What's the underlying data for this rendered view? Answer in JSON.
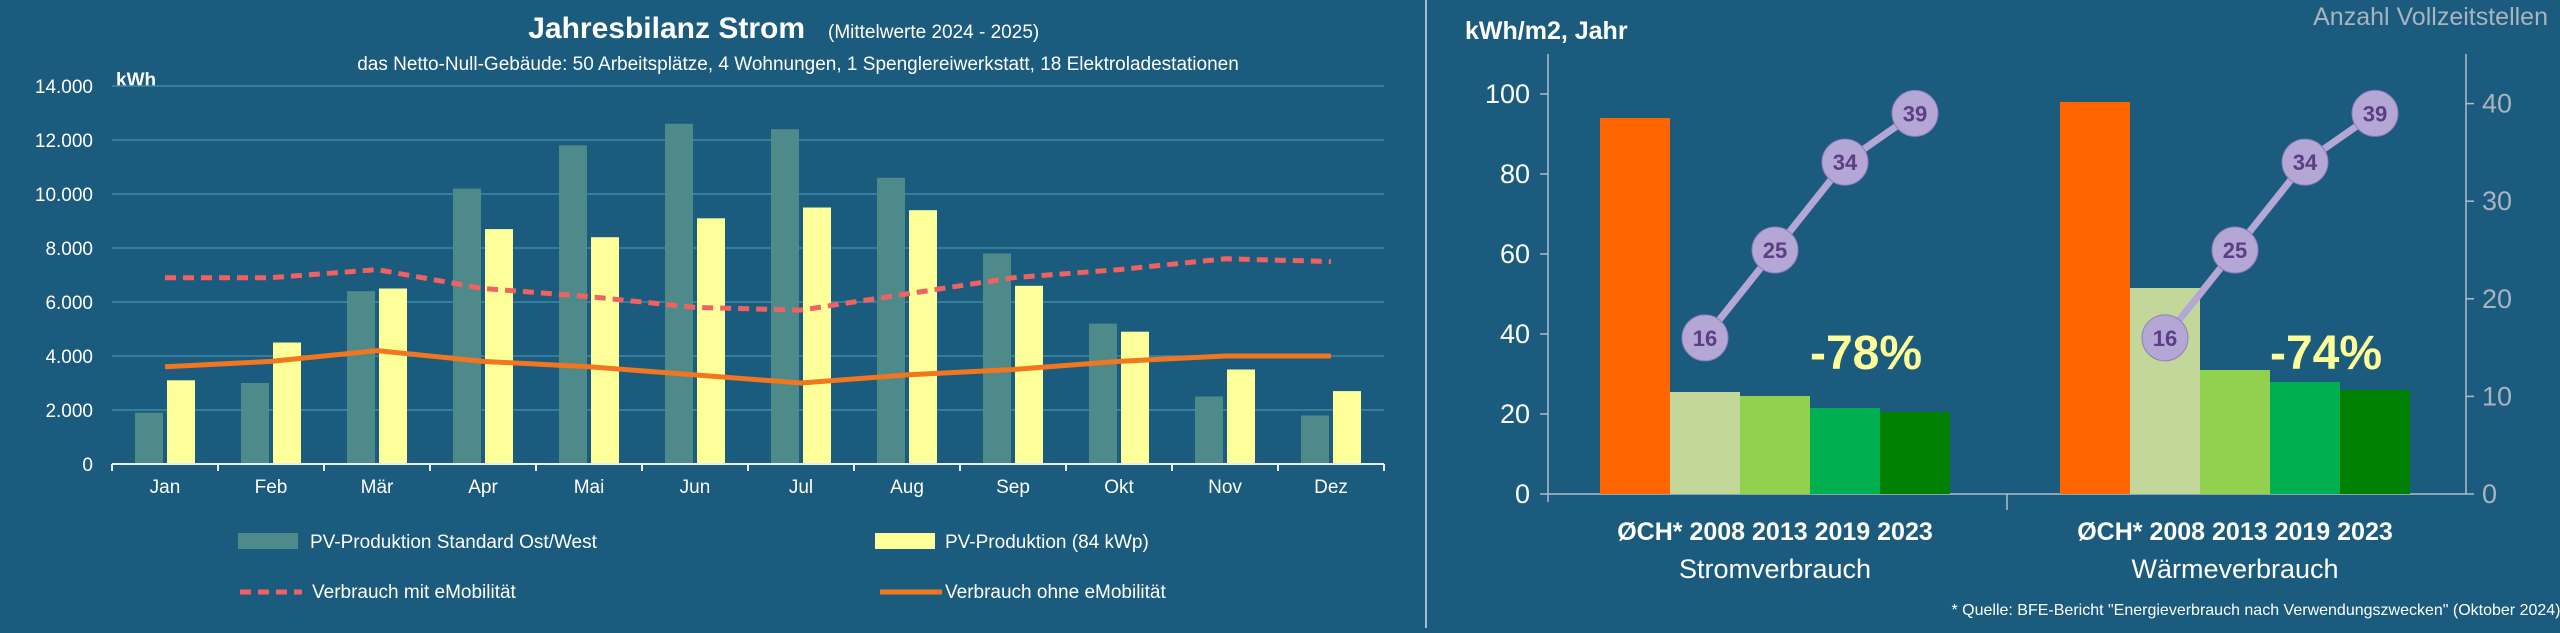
{
  "left_chart": {
    "title": "Jahresbilanz Strom",
    "title_note": "(Mittelwerte 2024 - 2025)",
    "subtitle": "das Netto-Null-Gebäude: 50 Arbeitsplätze, 4 Wohnungen, 1 Spenglereiwerkstatt, 18 Elektroladestationen",
    "unit_label": "kWh",
    "y_tick_labels": [
      "0",
      "2.000",
      "4.000",
      "6.000",
      "8.000",
      "10.000",
      "12.000",
      "14.000"
    ],
    "legend": {
      "pv_standard": "PV-Produktion Standard Ost/West",
      "pv_84": "PV-Produktion (84 kWp)",
      "consumption_emob": "Verbrauch mit eMobilität",
      "consumption_no_emob": "Verbrauch ohne eMobilität"
    }
  },
  "right_chart": {
    "y_left_label": "kWh/m2, Jahr",
    "y_right_label": "Anzahl Vollzeitstellen",
    "y_left_ticks": [
      "0",
      "20",
      "40",
      "60",
      "80",
      "100"
    ],
    "y_right_ticks": [
      "0",
      "10",
      "20",
      "30",
      "40"
    ],
    "groups": [
      {
        "bars_label": "ØCH* 2008 2013 2019 2023",
        "name": "Stromverbrauch",
        "reduction": "-78%"
      },
      {
        "bars_label": "ØCH* 2008 2013 2019 2023",
        "name": "Wärmeverbrauch",
        "reduction": "-74%"
      }
    ],
    "footnote": "* Quelle: BFE-Bericht \"Energieverbrauch nach Verwendungszwecken\" (Oktober 2024)"
  },
  "colors": {
    "background": "#1b5b7d",
    "pv_standard": "#4f8a8a",
    "pv_84": "#ffff99",
    "consumption_emob": "#f06262",
    "consumption_no_emob": "#f0761f",
    "bar_ch": "#ff6600",
    "bar_2008": "#c4d79b",
    "bar_2013": "#92d050",
    "bar_2019": "#00b050",
    "bar_2023": "#008000",
    "bubble": "#b4a7d6",
    "bubble_text": "#5b3f84",
    "reduction_text": "#ffff99"
  },
  "chart_data": [
    {
      "type": "bar",
      "title": "Jahresbilanz Strom",
      "ylabel": "kWh",
      "ylim": [
        0,
        14000
      ],
      "categories": [
        "Jan",
        "Feb",
        "Mär",
        "Apr",
        "Mai",
        "Jun",
        "Jul",
        "Aug",
        "Sep",
        "Okt",
        "Nov",
        "Dez"
      ],
      "series": [
        {
          "name": "PV-Produktion Standard Ost/West",
          "type": "bar",
          "values": [
            1900,
            3000,
            6400,
            10200,
            11800,
            12600,
            12400,
            10600,
            7800,
            5200,
            2500,
            1800
          ]
        },
        {
          "name": "PV-Produktion (84 kWp)",
          "type": "bar",
          "values": [
            3100,
            4500,
            6500,
            8700,
            8400,
            9100,
            9500,
            9400,
            6600,
            4900,
            3500,
            2700
          ]
        },
        {
          "name": "Verbrauch mit eMobilität",
          "type": "line",
          "values": [
            6900,
            6900,
            7200,
            6500,
            6200,
            5800,
            5700,
            6300,
            6900,
            7200,
            7600,
            7500
          ]
        },
        {
          "name": "Verbrauch ohne eMobilität",
          "type": "line",
          "values": [
            3600,
            3800,
            4200,
            3800,
            3600,
            3300,
            3000,
            3300,
            3500,
            3800,
            4000,
            4000
          ]
        }
      ]
    },
    {
      "type": "bar",
      "ylabel": "kWh/m2, Jahr",
      "y2label": "Anzahl Vollzeitstellen",
      "ylim": [
        0,
        105
      ],
      "y2lim": [
        0,
        44
      ],
      "groups": [
        {
          "name": "Stromverbrauch",
          "categories": [
            "ØCH*",
            "2008",
            "2013",
            "2019",
            "2023"
          ],
          "values": [
            94,
            25.5,
            24.5,
            21.5,
            20.5
          ],
          "employees": {
            "years": [
              "2008",
              "2013",
              "2019",
              "2023"
            ],
            "values": [
              16,
              25,
              34,
              39
            ]
          },
          "reduction": "-78%"
        },
        {
          "name": "Wärmeverbrauch",
          "categories": [
            "ØCH*",
            "2008",
            "2013",
            "2019",
            "2023"
          ],
          "values": [
            98,
            51.5,
            31,
            28,
            26
          ],
          "employees": {
            "years": [
              "2008",
              "2013",
              "2019",
              "2023"
            ],
            "values": [
              16,
              25,
              34,
              39
            ]
          },
          "reduction": "-74%"
        }
      ]
    }
  ]
}
